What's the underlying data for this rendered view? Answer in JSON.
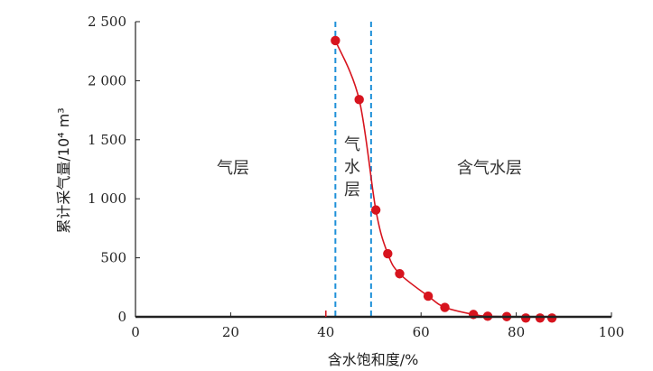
{
  "chart_data": {
    "type": "scatter",
    "title": "",
    "xlabel": "含水饱和度/%",
    "ylabel": "累计采气量/10⁴ m³",
    "xlim": [
      0,
      100
    ],
    "ylim": [
      0,
      2500
    ],
    "x_ticks": [
      0,
      20,
      40,
      60,
      80,
      100
    ],
    "y_ticks": [
      0,
      500,
      1000,
      1500,
      2000,
      2500
    ],
    "x_tick_labels": [
      "0",
      "20",
      "40",
      "60",
      "80",
      "100"
    ],
    "y_tick_labels": [
      "0",
      "500",
      "1 000",
      "1 500",
      "2 000",
      "2 500"
    ],
    "grid": false,
    "points": {
      "x": [
        42,
        47,
        50.5,
        53,
        55.5,
        61.5,
        65,
        71,
        74,
        78,
        82,
        85,
        87.5
      ],
      "y": [
        2340,
        1840,
        905,
        535,
        365,
        175,
        80,
        20,
        5,
        2,
        -10,
        -10,
        -10
      ]
    },
    "boundaries_x": [
      42,
      49.5
    ],
    "region_labels": [
      "气层",
      "气",
      "水",
      "层",
      "含气水层"
    ],
    "colors": {
      "points": "#d7141e",
      "curve": "#d7141e",
      "boundary": "#1e90d8",
      "axis": "#222222"
    }
  }
}
